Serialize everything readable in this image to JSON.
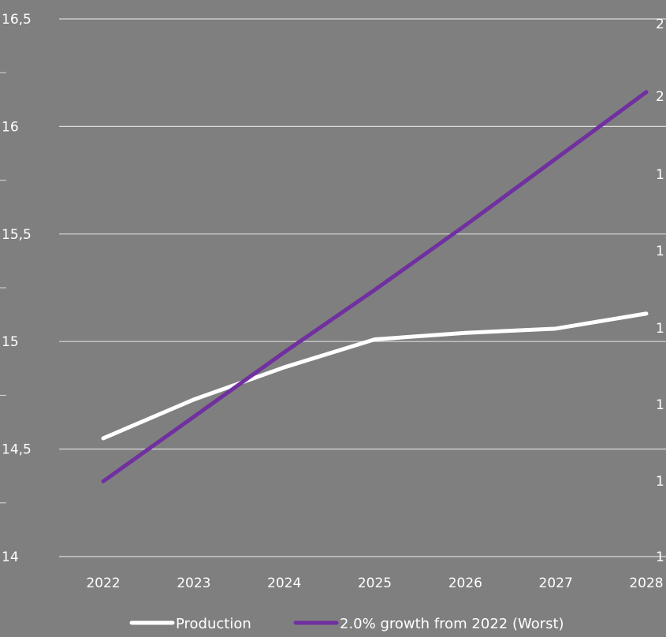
{
  "chart_data": {
    "type": "line",
    "title": "",
    "xlabel": "",
    "ylabel": "",
    "categories": [
      "2022",
      "2023",
      "2024",
      "2025",
      "2026",
      "2027",
      "2028"
    ],
    "ylim": [
      14,
      16.5
    ],
    "y_ticks": [
      "14",
      "14,5",
      "15",
      "15,5",
      "16",
      "16,5"
    ],
    "y_tick_values": [
      14,
      14.5,
      15,
      15.5,
      16,
      16.5
    ],
    "secondary_axis_ticks_partial": [
      "1",
      "1",
      "1",
      "1",
      "1",
      "1",
      "2",
      "2"
    ],
    "grid": true,
    "legend_position": "bottom",
    "series": [
      {
        "name": "Production",
        "color": "#ffffff",
        "values": [
          14.55,
          14.73,
          14.88,
          15.01,
          15.04,
          15.06,
          15.13
        ]
      },
      {
        "name": "2.0% growth from 2022 (Worst)",
        "color": "#7030a0",
        "values": [
          14.35,
          14.65,
          14.95,
          15.24,
          15.54,
          15.85,
          16.16
        ]
      }
    ]
  }
}
